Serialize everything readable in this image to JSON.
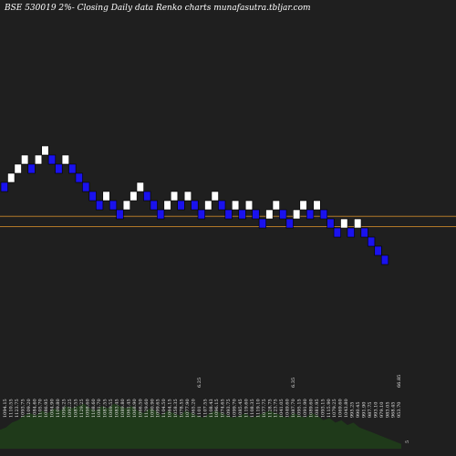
{
  "chart_data": {
    "type": "renko",
    "title": "BSE 530019 2%-  Closing Daily data  Renko  charts munafasutra.tbljar.com",
    "colors": {
      "background": "#1f1f1f",
      "up": "#ffffff",
      "down": "#1a12ee",
      "box_outline": "#000000",
      "ref_line": "#c8862a",
      "volume": "#1f3a1a",
      "label": "#e8e8e8"
    },
    "reference_lines": [
      1001,
      985
    ],
    "bricks": [
      {
        "low": 1039,
        "dir": "down"
      },
      {
        "low": 1053,
        "dir": "up"
      },
      {
        "low": 1067,
        "dir": "up"
      },
      {
        "low": 1081,
        "dir": "up"
      },
      {
        "low": 1067,
        "dir": "down"
      },
      {
        "low": 1081,
        "dir": "up"
      },
      {
        "low": 1095,
        "dir": "up"
      },
      {
        "low": 1081,
        "dir": "down"
      },
      {
        "low": 1067,
        "dir": "down"
      },
      {
        "low": 1081,
        "dir": "up"
      },
      {
        "low": 1067,
        "dir": "down"
      },
      {
        "low": 1053,
        "dir": "down"
      },
      {
        "low": 1039,
        "dir": "down"
      },
      {
        "low": 1025,
        "dir": "down"
      },
      {
        "low": 1011,
        "dir": "down"
      },
      {
        "low": 1025,
        "dir": "up"
      },
      {
        "low": 1011,
        "dir": "down"
      },
      {
        "low": 997,
        "dir": "down"
      },
      {
        "low": 1011,
        "dir": "up"
      },
      {
        "low": 1025,
        "dir": "up"
      },
      {
        "low": 1039,
        "dir": "up"
      },
      {
        "low": 1025,
        "dir": "down"
      },
      {
        "low": 1011,
        "dir": "down"
      },
      {
        "low": 997,
        "dir": "down"
      },
      {
        "low": 1011,
        "dir": "up"
      },
      {
        "low": 1025,
        "dir": "up"
      },
      {
        "low": 1011,
        "dir": "down"
      },
      {
        "low": 1025,
        "dir": "up"
      },
      {
        "low": 1011,
        "dir": "down"
      },
      {
        "low": 997,
        "dir": "down"
      },
      {
        "low": 1011,
        "dir": "up"
      },
      {
        "low": 1025,
        "dir": "up"
      },
      {
        "low": 1011,
        "dir": "down"
      },
      {
        "low": 997,
        "dir": "down"
      },
      {
        "low": 1011,
        "dir": "up"
      },
      {
        "low": 997,
        "dir": "down"
      },
      {
        "low": 1011,
        "dir": "up"
      },
      {
        "low": 997,
        "dir": "down"
      },
      {
        "low": 983,
        "dir": "down"
      },
      {
        "low": 997,
        "dir": "up"
      },
      {
        "low": 1011,
        "dir": "up"
      },
      {
        "low": 997,
        "dir": "down"
      },
      {
        "low": 983,
        "dir": "down"
      },
      {
        "low": 997,
        "dir": "up"
      },
      {
        "low": 1011,
        "dir": "up"
      },
      {
        "low": 997,
        "dir": "down"
      },
      {
        "low": 1011,
        "dir": "up"
      },
      {
        "low": 997,
        "dir": "down"
      },
      {
        "low": 983,
        "dir": "down"
      },
      {
        "low": 969,
        "dir": "down"
      },
      {
        "low": 983,
        "dir": "up"
      },
      {
        "low": 969,
        "dir": "down"
      },
      {
        "low": 983,
        "dir": "up"
      },
      {
        "low": 969,
        "dir": "down"
      },
      {
        "low": 955,
        "dir": "down"
      },
      {
        "low": 941,
        "dir": "down"
      },
      {
        "low": 927,
        "dir": "down"
      }
    ],
    "labels": [
      "1094.15",
      "1110.55",
      "1123.75",
      "1093.75",
      "1109.20",
      "1084.60",
      "1105.70",
      "1086.95",
      "1084.90",
      "1109.80",
      "1096.25",
      "1092.25",
      "1087.55",
      "1129.25",
      "1098.60",
      "1108.60",
      "1081.70",
      "1087.55",
      "1069.55",
      "1083.45",
      "1089.80",
      "1061.45",
      "1068.90",
      "1066.50",
      "1129.60",
      "1090.90",
      "1099.65",
      "1104.50",
      "1064.15",
      "1058.35",
      "1078.55",
      "1077.90",
      "1065.20",
      "1101",
      "1107.55",
      "1108.43",
      "1096.15",
      "1074.65",
      "1093.75",
      "1099.70",
      "1085.45",
      "1119.60",
      "1108.35",
      "1119.10",
      "1077.75",
      "1128.75",
      "1123.75",
      "1041.05",
      "1049.60",
      "1087.70",
      "1095.15",
      "1091.90",
      "1089.60",
      "1081.95",
      "1093.15",
      "1115.90",
      "1079.25",
      "1069.60",
      "1043.80",
      "995.25",
      "990.45",
      "991.90",
      "987.75",
      "993.10",
      "979.10",
      "983.05",
      "968.45",
      "953.70"
    ],
    "top_labels": [
      {
        "text": "6.25",
        "slot": 33
      },
      {
        "text": "6.35",
        "slot": 49
      },
      {
        "text": "66.85",
        "slot": 67
      }
    ],
    "last_label": "5",
    "volume": [
      8,
      9,
      11,
      12,
      14,
      15,
      14,
      16,
      15,
      17,
      16,
      18,
      17,
      18,
      19,
      17,
      16,
      18,
      17,
      19,
      18,
      17,
      18,
      16,
      15,
      17,
      16,
      14,
      16,
      15,
      14,
      16,
      15,
      14,
      13,
      15,
      16,
      15,
      14,
      13,
      14,
      15,
      13,
      14,
      15,
      16,
      15,
      14,
      13,
      15,
      14,
      13,
      15,
      14,
      12,
      13,
      11,
      12,
      10,
      11,
      9,
      8,
      7,
      6,
      5,
      4,
      3,
      2
    ],
    "volume_band": [
      412,
      492
    ]
  }
}
